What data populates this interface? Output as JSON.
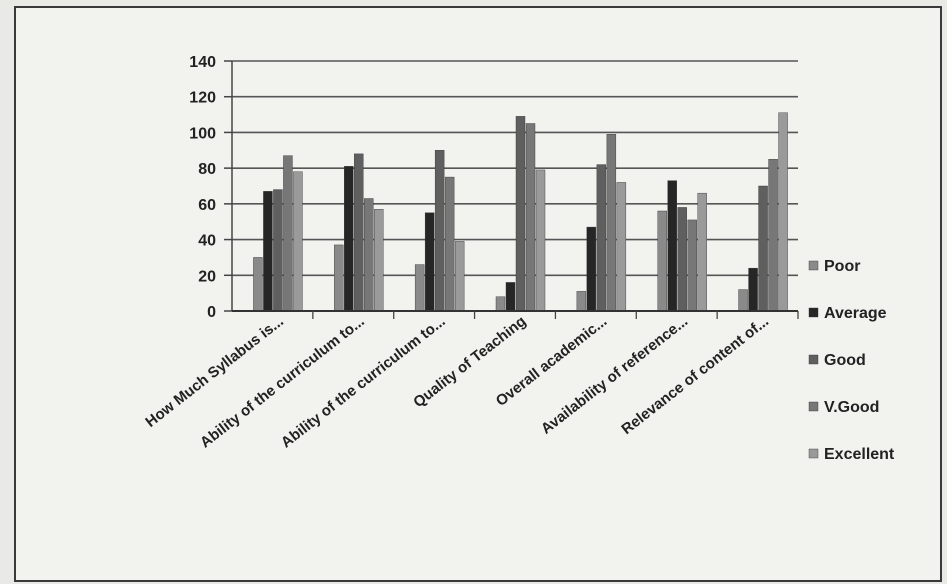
{
  "chart_data": {
    "type": "bar",
    "title": "",
    "xlabel": "",
    "ylabel": "",
    "ylim": [
      0,
      140
    ],
    "yticks": [
      0,
      20,
      40,
      60,
      80,
      100,
      120,
      140
    ],
    "grid": true,
    "legend_position": "right",
    "categories": [
      "How Much Syllabus is...",
      "Ability of the curriculum to...",
      "Ability of the curriculum to...",
      "Quality of Teaching",
      "Overall academic...",
      "Availability of reference...",
      "Relevance of content of..."
    ],
    "series": [
      {
        "name": "Poor",
        "color": "#8a8a8a",
        "values": [
          30,
          37,
          26,
          8,
          11,
          56,
          12
        ]
      },
      {
        "name": "Average",
        "color": "#262626",
        "values": [
          67,
          81,
          55,
          16,
          47,
          73,
          24
        ]
      },
      {
        "name": "Good",
        "color": "#5f5f5f",
        "values": [
          68,
          88,
          90,
          109,
          82,
          58,
          70
        ]
      },
      {
        "name": "V.Good",
        "color": "#777777",
        "values": [
          87,
          63,
          75,
          105,
          99,
          51,
          85
        ]
      },
      {
        "name": "Excellent",
        "color": "#9a9a9a",
        "values": [
          78,
          57,
          39,
          79,
          72,
          66,
          111
        ]
      }
    ]
  }
}
